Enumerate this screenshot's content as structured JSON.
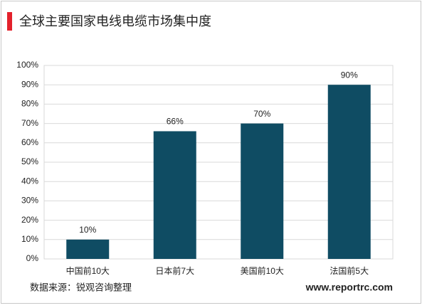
{
  "chart_data": {
    "type": "bar",
    "title": "全球主要国家电线电缆市场集中度",
    "categories": [
      "中国前10大",
      "日本前7大",
      "美国前10大",
      "法国前5大"
    ],
    "values": [
      10,
      66,
      70,
      90
    ],
    "value_labels": [
      "10%",
      "66%",
      "70%",
      "90%"
    ],
    "color": "#0f4c63",
    "ylim": [
      0,
      100
    ],
    "yticks": [
      {
        "value": 0,
        "label": "0%"
      },
      {
        "value": 10,
        "label": "10%"
      },
      {
        "value": 20,
        "label": "20%"
      },
      {
        "value": 30,
        "label": "30%"
      },
      {
        "value": 40,
        "label": "40%"
      },
      {
        "value": 50,
        "label": "50%"
      },
      {
        "value": 60,
        "label": "60%"
      },
      {
        "value": 70,
        "label": "70%"
      },
      {
        "value": 80,
        "label": "80%"
      },
      {
        "value": 90,
        "label": "90%"
      },
      {
        "value": 100,
        "label": "100%"
      }
    ],
    "grid": true,
    "source": "数据来源：锐观咨询整理",
    "watermark": "www.reportrc.com"
  }
}
